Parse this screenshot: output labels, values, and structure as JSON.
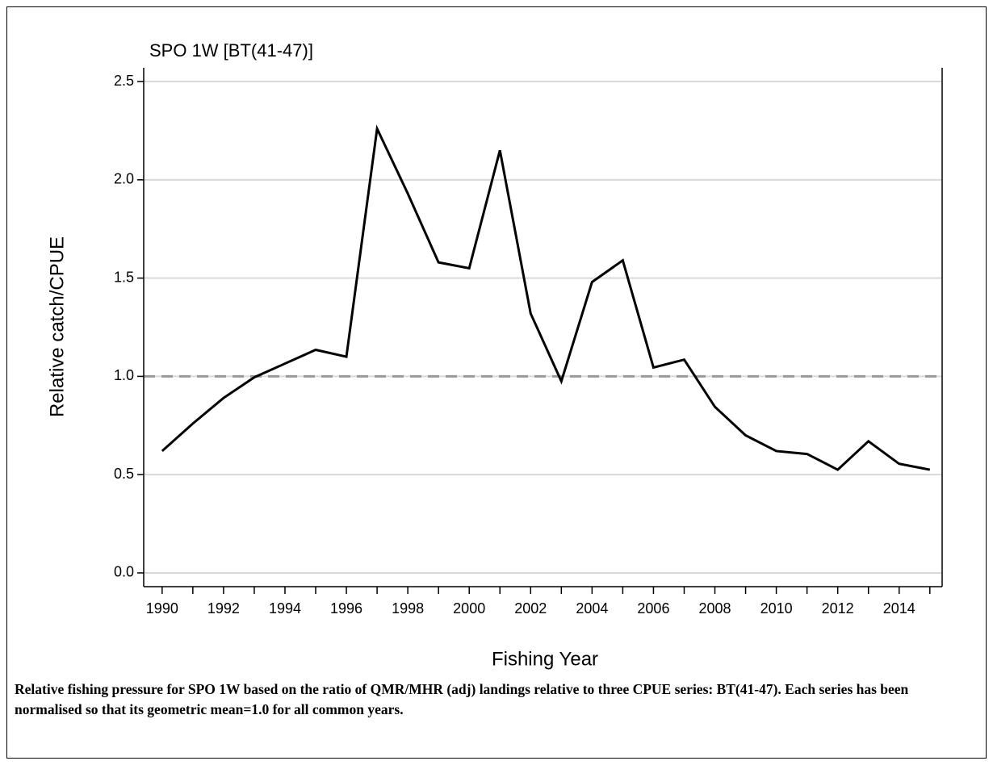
{
  "chart_data": {
    "type": "line",
    "title": "SPO 1W [BT(41-47)]",
    "x_label": "Fishing Year",
    "y_label": "Relative catch/CPUE",
    "x": [
      1990,
      1991,
      1992,
      1993,
      1994,
      1995,
      1996,
      1997,
      1998,
      1999,
      2000,
      2001,
      2002,
      2003,
      2004,
      2005,
      2006,
      2007,
      2008,
      2009,
      2010,
      2011,
      2012,
      2013,
      2014,
      2015
    ],
    "series": [
      {
        "color": "#000000",
        "values": [
          0.62,
          0.76,
          0.89,
          0.995,
          1.065,
          1.135,
          1.1,
          2.26,
          1.93,
          1.58,
          1.55,
          2.15,
          1.32,
          0.975,
          1.48,
          1.59,
          1.045,
          1.085,
          0.845,
          0.7,
          0.62,
          0.605,
          0.525,
          0.67,
          0.555,
          0.525
        ]
      }
    ],
    "xlim": [
      1989.4,
      2015.4
    ],
    "xticks": [
      1990,
      1992,
      1994,
      1996,
      1998,
      2000,
      2002,
      2004,
      2006,
      2008,
      2010,
      2012,
      2014
    ],
    "xminorticks": [
      1991,
      1993,
      1995,
      1997,
      1999,
      2001,
      2003,
      2005,
      2007,
      2009,
      2011,
      2013,
      2015
    ],
    "ylim": [
      -0.07,
      2.57
    ],
    "yticks": [
      {
        "value": 0,
        "label": "0.0"
      },
      0.5,
      {
        "value": 1,
        "label": "1.0"
      },
      1.5,
      {
        "value": 2,
        "label": "2.0"
      },
      2.5
    ],
    "grid": true,
    "reference_line": {
      "value": 1,
      "color": "#999999"
    },
    "caption": "Relative fishing pressure for SPO 1W based on the ratio of QMR/MHR (adj) landings relative to three CPUE series: BT(41-47). Each series has been normalised so that its geometric mean=1.0 for all common years."
  }
}
